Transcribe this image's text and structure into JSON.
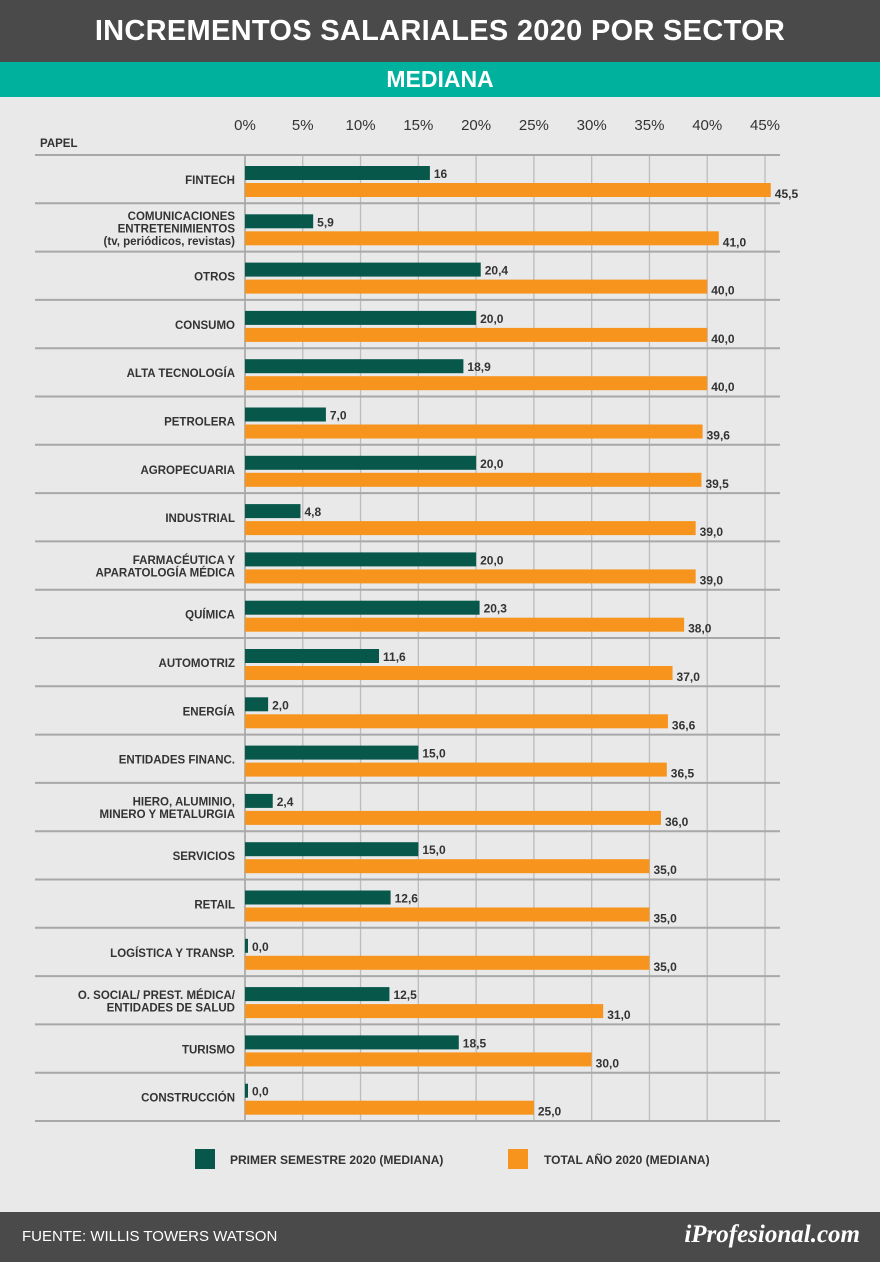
{
  "header": {
    "title": "INCREMENTOS SALARIALES 2020 POR SECTOR",
    "subtitle": "MEDIANA"
  },
  "chart_data": {
    "type": "bar",
    "orientation": "horizontal",
    "category_header": "PAPEL",
    "xlim": [
      0,
      45
    ],
    "ticks": [
      0,
      5,
      10,
      15,
      20,
      25,
      30,
      35,
      40,
      45
    ],
    "tick_labels": [
      "0%",
      "5%",
      "10%",
      "15%",
      "20%",
      "25%",
      "30%",
      "35%",
      "40%",
      "45%"
    ],
    "categories": [
      [
        "FINTECH"
      ],
      [
        "COMUNICACIONES",
        "ENTRETENIMIENTOS",
        "(tv, periódicos, revistas)"
      ],
      [
        "OTROS"
      ],
      [
        "CONSUMO"
      ],
      [
        "ALTA TECNOLOGÍA"
      ],
      [
        "PETROLERA"
      ],
      [
        "AGROPECUARIA"
      ],
      [
        "INDUSTRIAL"
      ],
      [
        "FARMACÉUTICA Y",
        "APARATOLOGÍA MÉDICA"
      ],
      [
        "QUÍMICA"
      ],
      [
        "AUTOMOTRIZ"
      ],
      [
        "ENERGÍA"
      ],
      [
        "ENTIDADES FINANC."
      ],
      [
        "HIERO, ALUMINIO,",
        "MINERO Y METALURGIA"
      ],
      [
        "SERVICIOS"
      ],
      [
        "RETAIL"
      ],
      [
        "LOGÍSTICA Y TRANSP."
      ],
      [
        "O. SOCIAL/ PREST. MÉDICA/",
        "ENTIDADES DE SALUD"
      ],
      [
        "TURISMO"
      ],
      [
        "CONSTRUCCIÓN"
      ]
    ],
    "series": [
      {
        "name": "PRIMER SEMESTRE 2020 (MEDIANA)",
        "color": "#07574a",
        "values": [
          16,
          5.9,
          20.4,
          20.0,
          18.9,
          7.0,
          20.0,
          4.8,
          20.0,
          20.3,
          11.6,
          2.0,
          15.0,
          2.4,
          15.0,
          12.6,
          0.0,
          12.5,
          18.5,
          0.0
        ],
        "labels": [
          "16",
          "5,9",
          "20,4",
          "20,0",
          "18,9",
          "7,0",
          "20,0",
          "4,8",
          "20,0",
          "20,3",
          "11,6",
          "2,0",
          "15,0",
          "2,4",
          "15,0",
          "12,6",
          "0,0",
          "12,5",
          "18,5",
          "0,0"
        ]
      },
      {
        "name": "TOTAL AÑO 2020 (MEDIANA)",
        "color": "#f7941d",
        "values": [
          45.5,
          41.0,
          40.0,
          40.0,
          40.0,
          39.6,
          39.5,
          39.0,
          39.0,
          38.0,
          37.0,
          36.6,
          36.5,
          36.0,
          35.0,
          35.0,
          35.0,
          31.0,
          30.0,
          25.0
        ],
        "labels": [
          "45,5",
          "41,0",
          "40,0",
          "40,0",
          "40,0",
          "39,6",
          "39,5",
          "39,0",
          "39,0",
          "38,0",
          "37,0",
          "36,6",
          "36,5",
          "36,0",
          "35,0",
          "35,0",
          "35,0",
          "31,0",
          "30,0",
          "25,0"
        ]
      }
    ]
  },
  "footer": {
    "source": "FUENTE:  WILLIS TOWERS WATSON",
    "brand": "iProfesional.com"
  }
}
